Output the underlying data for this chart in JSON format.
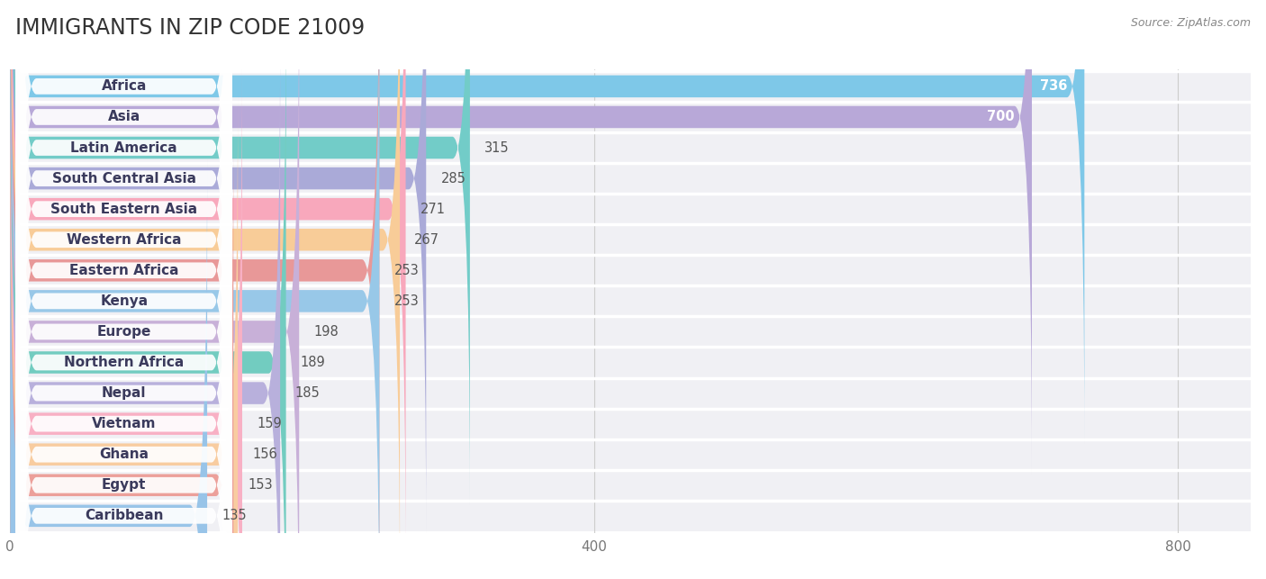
{
  "title": "IMMIGRANTS IN ZIP CODE 21009",
  "source": "Source: ZipAtlas.com",
  "categories": [
    "Africa",
    "Asia",
    "Latin America",
    "South Central Asia",
    "South Eastern Asia",
    "Western Africa",
    "Eastern Africa",
    "Kenya",
    "Europe",
    "Northern Africa",
    "Nepal",
    "Vietnam",
    "Ghana",
    "Egypt",
    "Caribbean"
  ],
  "values": [
    736,
    700,
    315,
    285,
    271,
    267,
    253,
    253,
    198,
    189,
    185,
    159,
    156,
    153,
    135
  ],
  "colors": [
    "#7ec8e8",
    "#b8a8d8",
    "#72ccc8",
    "#aaaad8",
    "#f8a8bc",
    "#f8cc98",
    "#e89898",
    "#98c8e8",
    "#c8b0d8",
    "#72ccc0",
    "#b8b0dc",
    "#f8b0c4",
    "#f8cca0",
    "#eca09a",
    "#98c4e8"
  ],
  "xlim": [
    0,
    850
  ],
  "xticks": [
    0,
    400,
    800
  ],
  "background_color": "#ffffff",
  "row_bg_color": "#f0f0f4",
  "title_fontsize": 17,
  "label_fontsize": 11,
  "value_fontsize": 10.5
}
